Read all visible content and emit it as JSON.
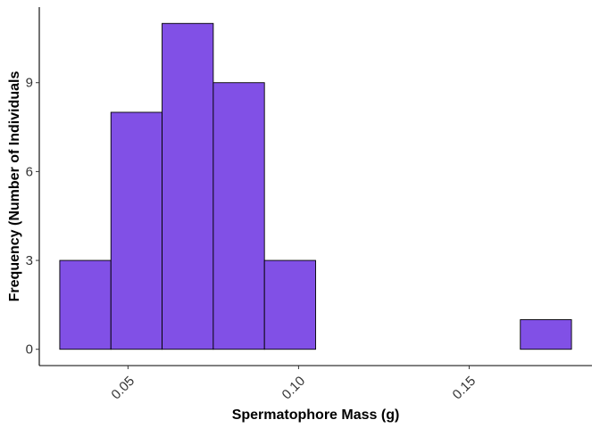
{
  "chart_data": {
    "type": "bar",
    "subtype": "histogram",
    "title": "",
    "xlabel": "Spermatophore Mass (g)",
    "ylabel": "Frequency (Number of Individuals",
    "bins": [
      {
        "x0": 0.03,
        "x1": 0.045,
        "count": 3
      },
      {
        "x0": 0.045,
        "x1": 0.06,
        "count": 8
      },
      {
        "x0": 0.06,
        "x1": 0.075,
        "count": 11
      },
      {
        "x0": 0.075,
        "x1": 0.09,
        "count": 9
      },
      {
        "x0": 0.09,
        "x1": 0.105,
        "count": 3
      },
      {
        "x0": 0.105,
        "x1": 0.12,
        "count": 0
      },
      {
        "x0": 0.12,
        "x1": 0.135,
        "count": 0
      },
      {
        "x0": 0.135,
        "x1": 0.15,
        "count": 0
      },
      {
        "x0": 0.15,
        "x1": 0.165,
        "count": 0
      },
      {
        "x0": 0.165,
        "x1": 0.18,
        "count": 1
      }
    ],
    "xlim": [
      0.024,
      0.186
    ],
    "ylim": [
      -0.55,
      11.55
    ],
    "x_ticks": [
      0.05,
      0.1,
      0.15
    ],
    "x_tick_labels": [
      "0.05",
      "0.10",
      "0.15"
    ],
    "y_ticks": [
      0,
      3,
      6,
      9
    ],
    "y_tick_labels": [
      "0",
      "3",
      "6",
      "9"
    ],
    "grid": false,
    "legend": "none",
    "colors": {
      "fill": "#8150e6",
      "outline": "#000000",
      "axis": "#000000",
      "tick_text": "#333333"
    }
  }
}
